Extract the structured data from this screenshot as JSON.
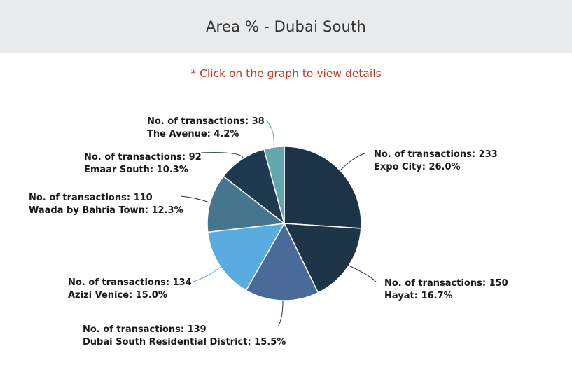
{
  "header": {
    "title": "Area % - Dubai South"
  },
  "hint": "* Click on the graph to view details",
  "chart_data": {
    "type": "pie",
    "label_prefix": "No. of transactions: ",
    "slices": [
      {
        "name": "Expo City",
        "transactions": 233,
        "percent": "26.0%",
        "color": "#1d3347"
      },
      {
        "name": "Hayat",
        "transactions": 150,
        "percent": "16.7%",
        "color": "#1e3447"
      },
      {
        "name": "Dubai South Residential District",
        "transactions": 139,
        "percent": "15.5%",
        "color": "#4a6b9a"
      },
      {
        "name": "Azizi Venice",
        "transactions": 134,
        "percent": "15.0%",
        "color": "#5aace0"
      },
      {
        "name": "Waada by Bahria Town",
        "transactions": 110,
        "percent": "12.3%",
        "color": "#467590"
      },
      {
        "name": "Emaar South",
        "transactions": 92,
        "percent": "10.3%",
        "color": "#1e3a50"
      },
      {
        "name": "The Avenue",
        "transactions": 38,
        "percent": "4.2%",
        "color": "#63a6ad"
      }
    ]
  }
}
